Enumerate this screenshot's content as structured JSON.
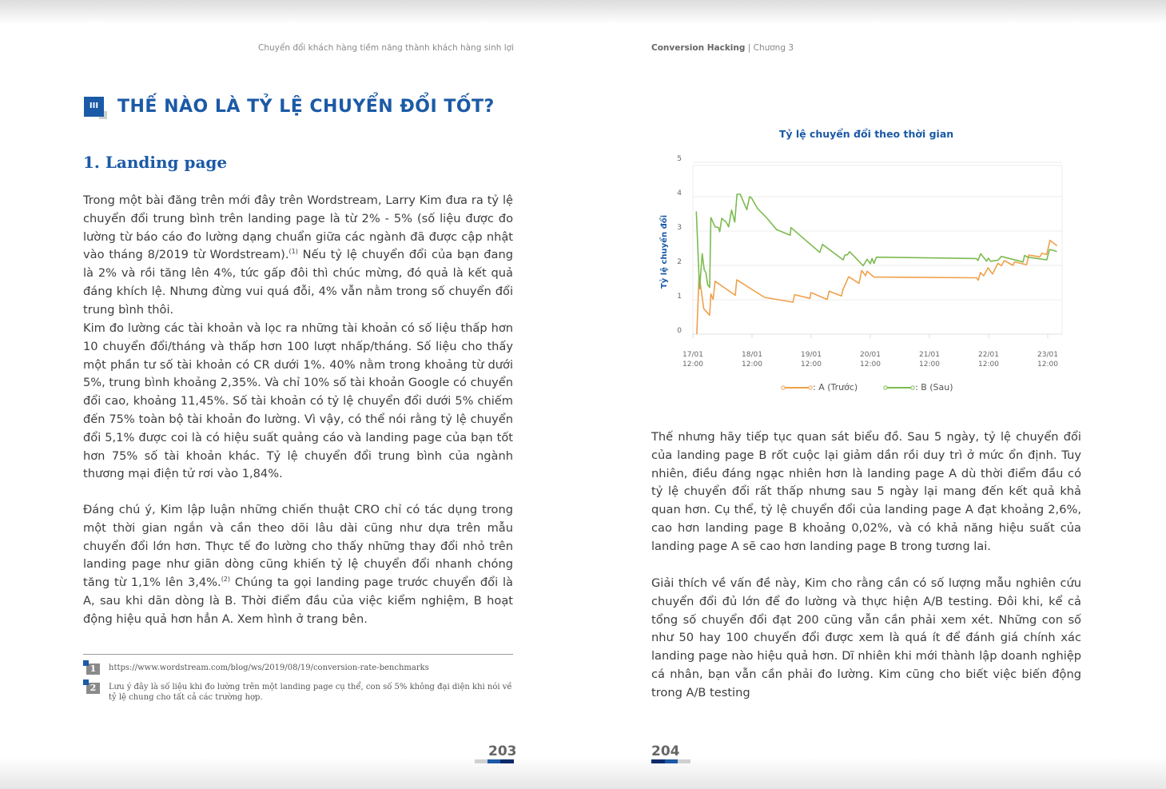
{
  "left_page": {
    "running_header": "Chuyển đổi khách hàng tiềm năng thành khách hàng sinh lợi",
    "section_number": "III",
    "section_title": "THẾ NÀO LÀ TỶ LỆ CHUYỂN ĐỔI TỐT?",
    "subsection_title": "1. Landing page",
    "paragraphs": [
      {
        "before": "Trong một bài đăng trên mới đây trên Wordstream, Larry Kim đưa ra tỷ lệ chuyển đổi trung bình trên landing page là từ 2% - 5% (số liệu được đo lường từ báo cáo đo lường dạng chuẩn giữa các ngành đã được cập nhật vào tháng 8/2019 từ Wordstream).",
        "sup": "(1)",
        "after": " Nếu tỷ lệ chuyển đổi của bạn đang là 2% và rồi tăng lên 4%, tức gấp đôi thì chúc mừng, đó quả là kết quả đáng khích lệ. Nhưng đừng vui quá đỗi, 4% vẫn nằm trong số chuyển đổi trung bình thôi."
      },
      {
        "before": "Kim đo lường các tài khoản và lọc ra những tài khoản có số liệu thấp hơn 10 chuyển đổi/tháng và thấp hơn 100 lượt nhấp/tháng. Số liệu cho thấy một phần tư số tài khoản có CR dưới 1%. 40% nằm trong khoảng từ dưới 5%, trung bình khoảng 2,35%. Và chỉ 10% số tài khoản Google có chuyển đổi cao, khoảng 11,45%. Số tài khoản có tỷ lệ chuyển đổi dưới 5% chiếm đến 75% toàn bộ tài khoản đo lường. Vì vậy, có thể nói rằng tỷ lệ chuyển đổi 5,1% được coi là có hiệu suất quảng cáo và landing page của bạn tốt hơn 75% số tài khoản khác. Tỷ lệ chuyển đổi trung bình của ngành thương mại điện tử rơi vào 1,84%.",
        "sup": "",
        "after": ""
      },
      {
        "before": "Đáng chú ý, Kim lập luận những chiến thuật CRO chỉ có tác dụng trong một thời gian ngắn và cần theo dõi lâu dài cũng như dựa trên mẫu chuyển đổi lớn hơn. Thực tế đo lường cho thấy những thay đổi nhỏ trên landing page như giãn dòng cũng khiến tỷ lệ chuyển đổi nhanh chóng tăng từ 1,1% lên 3,4%.",
        "sup": "(2)",
        "after": " Chúng ta gọi landing page trước chuyển đổi là A, sau khi dãn dòng là B. Thời điểm đầu của việc kiểm nghiệm, B hoạt động hiệu quả hơn hẳn A. Xem hình ở trang bên."
      }
    ],
    "footnotes": [
      {
        "number": "1",
        "text": "https://www.wordstream.com/blog/ws/2019/08/19/conversion-rate-benchmarks"
      },
      {
        "number": "2",
        "text": "Lưu ý đây là số liệu khi đo lường trên một landing page cụ thể, con số 5% không đại diện khi nói về tỷ lệ chung cho tất cả các trường hợp."
      }
    ],
    "page_number": "203"
  },
  "right_page": {
    "running_header_bold": "Conversion Hacking",
    "running_header_rest": " | Chương 3",
    "paragraphs": [
      "Thế nhưng hãy tiếp tục quan sát biểu đồ. Sau 5 ngày, tỷ lệ chuyển đổi của landing page B rốt cuộc lại giảm dần rồi duy trì ở mức ổn định. Tuy nhiên, điều đáng ngạc nhiên hơn là landing page A dù thời điểm đầu có tỷ lệ chuyển đổi rất thấp nhưng sau 5 ngày lại mang đến kết quả khả quan hơn. Cụ thể, tỷ lệ chuyển đổi của landing page A đạt khoảng 2,6%, cao hơn landing page B khoảng 0,02%, và có khả năng hiệu suất của landing page A sẽ cao hơn landing page B trong tương lai.",
      "Giải thích về vấn đề này, Kim cho rằng cần có số lượng mẫu nghiên cứu chuyển đổi đủ lớn để đo lường và thực hiện A/B testing. Đôi khi, kể cả tổng số chuyển đổi đạt 200 cũng vẫn cần phải xem xét. Những con số như 50 hay 100 chuyển đổi được xem là quá ít để đánh giá chính xác landing page nào hiệu quả hơn. Dĩ nhiên khi mới thành lập doanh nghiệp cá nhân, bạn vẫn cần phải đo lường. Kim cũng cho biết việc biến động trong A/B testing"
    ],
    "page_number": "204"
  },
  "colors": {
    "accent": "#1b5aa6",
    "series_a": "#f0a04b",
    "series_b": "#7cbb4f"
  },
  "chart_data": {
    "type": "line",
    "title": "Tỷ lệ chuyển đổi theo thời gian",
    "xlabel": "",
    "ylabel": "Tỷ lệ chuyển đổi",
    "ylim": [
      0,
      5
    ],
    "yticks": [
      "0",
      "1",
      "2",
      "3",
      "4",
      "5"
    ],
    "xticks": [
      [
        "17/01",
        "12:00"
      ],
      [
        "18/01",
        "12:00"
      ],
      [
        "19/01",
        "12:00"
      ],
      [
        "20/01",
        "12:00"
      ],
      [
        "21/01",
        "12:00"
      ],
      [
        "22/01",
        "12:00"
      ],
      [
        "23/01",
        "12:00"
      ]
    ],
    "grid": true,
    "legend": "bottom",
    "series": [
      {
        "name": ": A (Trước)",
        "color": "#f0a04b",
        "points": [
          [
            "17/01 13:36",
            0
          ],
          [
            "17/01 14:30",
            1.71
          ],
          [
            "17/01 15:18",
            1.32
          ],
          [
            "17/01 16:24",
            0.74
          ],
          [
            "17/01 18:48",
            0.55
          ],
          [
            "17/01 19:18",
            1.17
          ],
          [
            "17/01 20:12",
            1.01
          ],
          [
            "17/01 21:00",
            1.54
          ],
          [
            "18/01 05:12",
            1.13
          ],
          [
            "18/01 05:48",
            1.58
          ],
          [
            "18/01 17:06",
            1.07
          ],
          [
            "19/01 04:36",
            0.93
          ],
          [
            "19/01 05:18",
            1.15
          ],
          [
            "19/01 11:30",
            1.04
          ],
          [
            "19/01 11:54",
            1.21
          ],
          [
            "19/01 18:30",
            1.01
          ],
          [
            "19/01 19:18",
            1.25
          ],
          [
            "20/01 00:18",
            1.11
          ],
          [
            "20/01 00:48",
            1.28
          ],
          [
            "20/01 03:12",
            1.67
          ],
          [
            "20/01 07:24",
            1.48
          ],
          [
            "20/01 08:30",
            1.85
          ],
          [
            "20/01 10:06",
            1.7
          ],
          [
            "20/01 10:42",
            1.83
          ],
          [
            "20/01 13:30",
            1.66
          ],
          [
            "22/01 07:06",
            1.64
          ],
          [
            "22/01 07:48",
            1.57
          ],
          [
            "22/01 08:42",
            1.79
          ],
          [
            "22/01 10:00",
            1.7
          ],
          [
            "22/01 11:48",
            1.93
          ],
          [
            "22/01 13:36",
            1.75
          ],
          [
            "22/01 15:48",
            2.06
          ],
          [
            "22/01 17:12",
            1.99
          ],
          [
            "22/01 18:24",
            2.14
          ],
          [
            "22/01 21:54",
            2.0
          ],
          [
            "22/01 22:30",
            2.1
          ],
          [
            "23/01 03:24",
            2.02
          ],
          [
            "23/01 04:18",
            2.3
          ],
          [
            "23/01 08:48",
            2.25
          ],
          [
            "23/01 09:36",
            2.35
          ],
          [
            "23/01 11:36",
            2.32
          ],
          [
            "23/01 12:54",
            2.73
          ],
          [
            "23/01 15:48",
            2.57
          ]
        ]
      },
      {
        "name": ": B (Sau)",
        "color": "#7cbb4f",
        "points": [
          [
            "17/01 13:24",
            3.57
          ],
          [
            "17/01 14:42",
            1.32
          ],
          [
            "17/01 15:48",
            2.34
          ],
          [
            "17/01 16:36",
            1.87
          ],
          [
            "17/01 17:18",
            1.79
          ],
          [
            "17/01 18:00",
            1.44
          ],
          [
            "17/01 18:48",
            1.36
          ],
          [
            "17/01 19:18",
            3.39
          ],
          [
            "17/01 21:00",
            3.12
          ],
          [
            "17/01 22:24",
            3.1
          ],
          [
            "17/01 22:54",
            2.98
          ],
          [
            "17/01 23:42",
            3.37
          ],
          [
            "18/01 00:36",
            3.31
          ],
          [
            "18/01 01:24",
            3.27
          ],
          [
            "18/01 02:30",
            3.12
          ],
          [
            "18/01 03:42",
            3.61
          ],
          [
            "18/01 05:00",
            3.26
          ],
          [
            "18/01 05:54",
            4.07
          ],
          [
            "18/01 07:12",
            4.07
          ],
          [
            "18/01 09:54",
            3.62
          ],
          [
            "18/01 11:00",
            4.0
          ],
          [
            "18/01 11:48",
            3.96
          ],
          [
            "18/01 14:18",
            3.65
          ],
          [
            "18/01 17:36",
            3.41
          ],
          [
            "18/01 22:00",
            3.04
          ],
          [
            "19/01 03:30",
            2.88
          ],
          [
            "19/01 03:48",
            3.1
          ],
          [
            "19/01 15:30",
            2.38
          ],
          [
            "19/01 16:36",
            2.61
          ],
          [
            "20/01 01:00",
            2.16
          ],
          [
            "20/01 01:42",
            2.3
          ],
          [
            "20/01 02:42",
            2.31
          ],
          [
            "20/01 03:36",
            2.4
          ],
          [
            "20/01 09:06",
            1.99
          ],
          [
            "20/01 10:42",
            2.18
          ],
          [
            "20/01 12:00",
            2.05
          ],
          [
            "20/01 12:42",
            2.2
          ],
          [
            "20/01 13:30",
            2.06
          ],
          [
            "20/01 14:30",
            2.24
          ],
          [
            "22/01 07:06",
            2.2
          ],
          [
            "22/01 07:42",
            2.14
          ],
          [
            "22/01 08:48",
            2.34
          ],
          [
            "22/01 11:12",
            2.12
          ],
          [
            "22/01 11:54",
            2.21
          ],
          [
            "22/01 12:48",
            2.12
          ],
          [
            "22/01 15:48",
            2.15
          ],
          [
            "22/01 17:12",
            2.26
          ],
          [
            "23/01 02:00",
            2.1
          ],
          [
            "23/01 02:36",
            2.29
          ],
          [
            "23/01 03:54",
            2.24
          ],
          [
            "23/01 11:36",
            2.16
          ],
          [
            "23/01 12:42",
            2.46
          ],
          [
            "23/01 14:12",
            2.44
          ],
          [
            "23/01 15:42",
            2.4
          ]
        ]
      }
    ]
  }
}
